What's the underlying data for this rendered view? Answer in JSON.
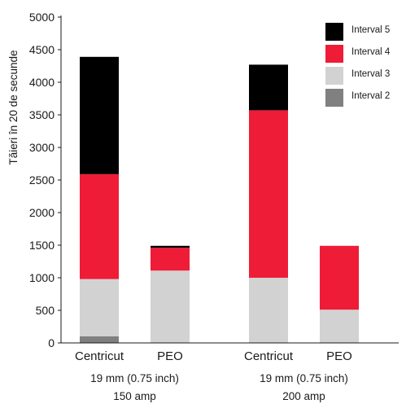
{
  "chart_data": {
    "type": "bar",
    "stacked": true,
    "ylabel": "Tăieri în 20 de secunde",
    "xlabel": "",
    "title": "",
    "ylim": [
      0,
      5000
    ],
    "yticks": [
      0,
      500,
      1000,
      1500,
      2000,
      2500,
      3000,
      3500,
      4000,
      4500,
      5000
    ],
    "grid": false,
    "legend_position": "top-right",
    "categories": [
      "Centricut",
      "PEO",
      "Centricut",
      "PEO"
    ],
    "groups": [
      {
        "line1": "19 mm (0.75 inch)",
        "line2": "150 amp",
        "category_indices": [
          0,
          1
        ]
      },
      {
        "line1": "19 mm (0.75 inch)",
        "line2": "200 amp",
        "category_indices": [
          2,
          3
        ]
      }
    ],
    "series": [
      {
        "name": "Interval 2",
        "color": "#808080",
        "values": [
          100,
          0,
          0,
          0
        ]
      },
      {
        "name": "Interval 3",
        "color": "#d2d2d2",
        "values": [
          880,
          1110,
          1000,
          510
        ]
      },
      {
        "name": "Interval 4",
        "color": "#ee1c36",
        "values": [
          1610,
          350,
          2570,
          980
        ]
      },
      {
        "name": "Interval 5",
        "color": "#000000",
        "values": [
          1800,
          30,
          700,
          0
        ]
      }
    ],
    "legend_order": [
      "Interval 5",
      "Interval 4",
      "Interval 3",
      "Interval 2"
    ]
  }
}
